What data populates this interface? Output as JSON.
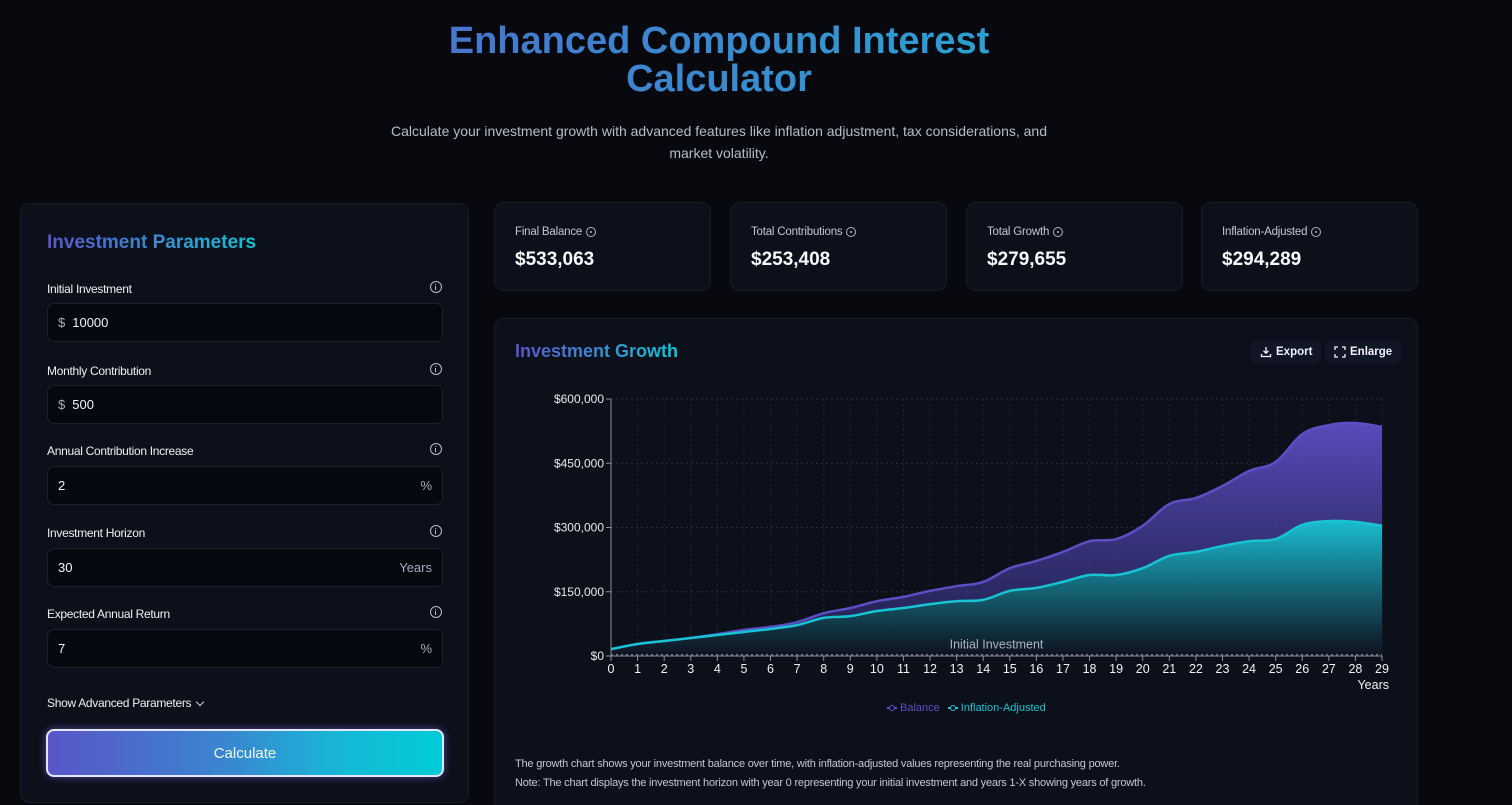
{
  "header": {
    "title_line1": "Enhanced Compound Interest",
    "title_line2": "Calculator",
    "subtitle": "Calculate your investment growth with advanced features like inflation adjustment, tax considerations, and market volatility."
  },
  "params": {
    "title": "Investment Parameters",
    "fields": [
      {
        "label": "Initial Investment",
        "prefix": "$",
        "value": "10000",
        "suffix": ""
      },
      {
        "label": "Monthly Contribution",
        "prefix": "$",
        "value": "500",
        "suffix": ""
      },
      {
        "label": "Annual Contribution Increase",
        "prefix": "",
        "value": "2",
        "suffix": "%"
      },
      {
        "label": "Investment Horizon",
        "prefix": "",
        "value": "30",
        "suffix": "Years"
      },
      {
        "label": "Expected Annual Return",
        "prefix": "",
        "value": "7",
        "suffix": "%"
      }
    ],
    "advanced_label": "Show Advanced Parameters",
    "calculate_label": "Calculate"
  },
  "stats": [
    {
      "label": "Final Balance",
      "value": "$533,063"
    },
    {
      "label": "Total Contributions",
      "value": "$253,408"
    },
    {
      "label": "Total Growth",
      "value": "$279,655"
    },
    {
      "label": "Inflation-Adjusted",
      "value": "$294,289"
    }
  ],
  "chart_panel": {
    "title": "Investment Growth",
    "export_label": "Export",
    "enlarge_label": "Enlarge",
    "note1": "The growth chart shows your investment balance over time, with inflation-adjusted values representing the real purchasing power.",
    "note2": "Note: The chart displays the investment horizon with year 0 representing your initial investment and years 1-X showing years of growth."
  },
  "colors": {
    "balance": "#5b4fc4",
    "inflation": "#18c3d4",
    "accent_start": "#5a55c9",
    "accent_end": "#00cbd6"
  },
  "chart_data": {
    "type": "area",
    "title": "Investment Growth",
    "xlabel": "Years",
    "ylabel": "",
    "x": [
      0,
      1,
      2,
      3,
      4,
      5,
      6,
      7,
      8,
      9,
      10,
      11,
      12,
      13,
      14,
      15,
      16,
      17,
      18,
      19,
      20,
      21,
      22,
      23,
      24,
      25,
      26,
      27,
      28,
      29
    ],
    "y_ticks": [
      "$0",
      "$150,000",
      "$300,000",
      "$450,000",
      "$600,000"
    ],
    "ylim": [
      0,
      600000
    ],
    "grid": true,
    "legend_position": "bottom",
    "annotations": [
      {
        "text": "Initial Investment",
        "y": 10000,
        "style": "dashed-line"
      }
    ],
    "series": [
      {
        "name": "Balance",
        "values": [
          16000,
          28000,
          35000,
          42000,
          51000,
          61000,
          68000,
          79000,
          100000,
          112000,
          128000,
          138000,
          152000,
          163000,
          173000,
          205000,
          222000,
          243000,
          268000,
          273000,
          304000,
          355000,
          369000,
          397000,
          432000,
          453000,
          518000,
          539000,
          544000,
          535000
        ]
      },
      {
        "name": "Inflation-Adjusted",
        "values": [
          16000,
          28000,
          35000,
          42000,
          49000,
          56000,
          63000,
          72000,
          89000,
          93000,
          105000,
          112000,
          121000,
          128000,
          131000,
          152000,
          159000,
          173000,
          189000,
          189000,
          205000,
          234000,
          243000,
          257000,
          268000,
          273000,
          306000,
          315000,
          313000,
          304000
        ]
      }
    ]
  }
}
